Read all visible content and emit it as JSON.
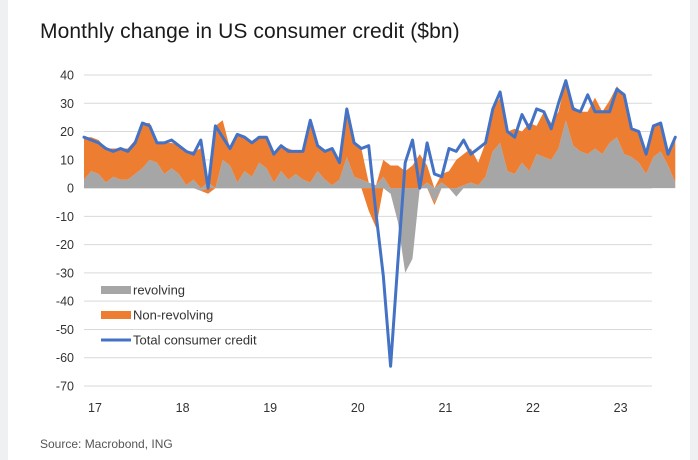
{
  "title": "Monthly change in US consumer credit ($bn)",
  "source": "Source: Macrobond, ING",
  "colors": {
    "revolving": "#a6a6a6",
    "nonrevolving": "#ed7d31",
    "total": "#4472c4",
    "grid": "#d9d9d9"
  },
  "chart_data": {
    "type": "area",
    "x_start": "2017-01",
    "x_labels": [
      "17",
      "18",
      "19",
      "20",
      "21",
      "22",
      "23"
    ],
    "ylim": [
      -70,
      40
    ],
    "yticks": [
      40,
      30,
      20,
      10,
      0,
      -10,
      -20,
      -30,
      -40,
      -50,
      -60,
      -70
    ],
    "grid": true,
    "legend_position": "bottom-left",
    "series": [
      {
        "name": "revolving",
        "type": "area",
        "values": [
          3,
          6,
          5,
          2,
          4,
          3,
          3,
          5,
          7,
          10,
          9,
          5,
          7,
          5,
          1,
          3,
          -1,
          2,
          0,
          10,
          8,
          2,
          6,
          4,
          9,
          7,
          2,
          6,
          3,
          5,
          3,
          2,
          6,
          3,
          1,
          3,
          11,
          4,
          3,
          2,
          1,
          4,
          -2,
          -12,
          -30,
          -25,
          0,
          2,
          -5,
          2,
          0,
          -3,
          1,
          2,
          1,
          4,
          13,
          16,
          6,
          5,
          9,
          6,
          12,
          11,
          10,
          14,
          24,
          15,
          13,
          12,
          14,
          12,
          16,
          18,
          12,
          11,
          9,
          5,
          11,
          13,
          8,
          2
        ]
      },
      {
        "name": "Non-revolving",
        "type": "area",
        "values": [
          15,
          12,
          12,
          12,
          10,
          11,
          11,
          12,
          16,
          13,
          7,
          11,
          9,
          10,
          12,
          10,
          14,
          -2,
          22,
          14,
          6,
          17,
          12,
          12,
          9,
          11,
          10,
          9,
          11,
          8,
          10,
          22,
          9,
          10,
          13,
          6,
          17,
          12,
          11,
          -8,
          -14,
          6,
          8,
          8,
          6,
          8,
          12,
          6,
          -1,
          3,
          6,
          10,
          11,
          12,
          8,
          12,
          15,
          16,
          14,
          16,
          11,
          17,
          10,
          16,
          13,
          13,
          14,
          14,
          14,
          15,
          18,
          15,
          15,
          18,
          21,
          10,
          11,
          7,
          11,
          10,
          4,
          16
        ]
      },
      {
        "name": "Total consumer credit",
        "type": "line",
        "values": [
          18,
          17,
          16,
          14,
          13,
          14,
          13,
          16,
          23,
          22,
          16,
          16,
          17,
          15,
          13,
          12,
          17,
          0,
          22,
          18,
          14,
          19,
          18,
          16,
          18,
          18,
          12,
          15,
          13,
          13,
          13,
          24,
          15,
          13,
          14,
          9,
          28,
          16,
          14,
          15,
          -9,
          -31,
          -63,
          -26,
          9,
          17,
          0,
          16,
          5,
          4,
          14,
          13,
          17,
          12,
          14,
          16,
          28,
          34,
          20,
          18,
          26,
          21,
          28,
          27,
          21,
          30,
          38,
          28,
          27,
          33,
          27,
          27,
          27,
          35,
          33,
          21,
          20,
          12,
          22,
          23,
          12,
          18
        ]
      }
    ]
  }
}
